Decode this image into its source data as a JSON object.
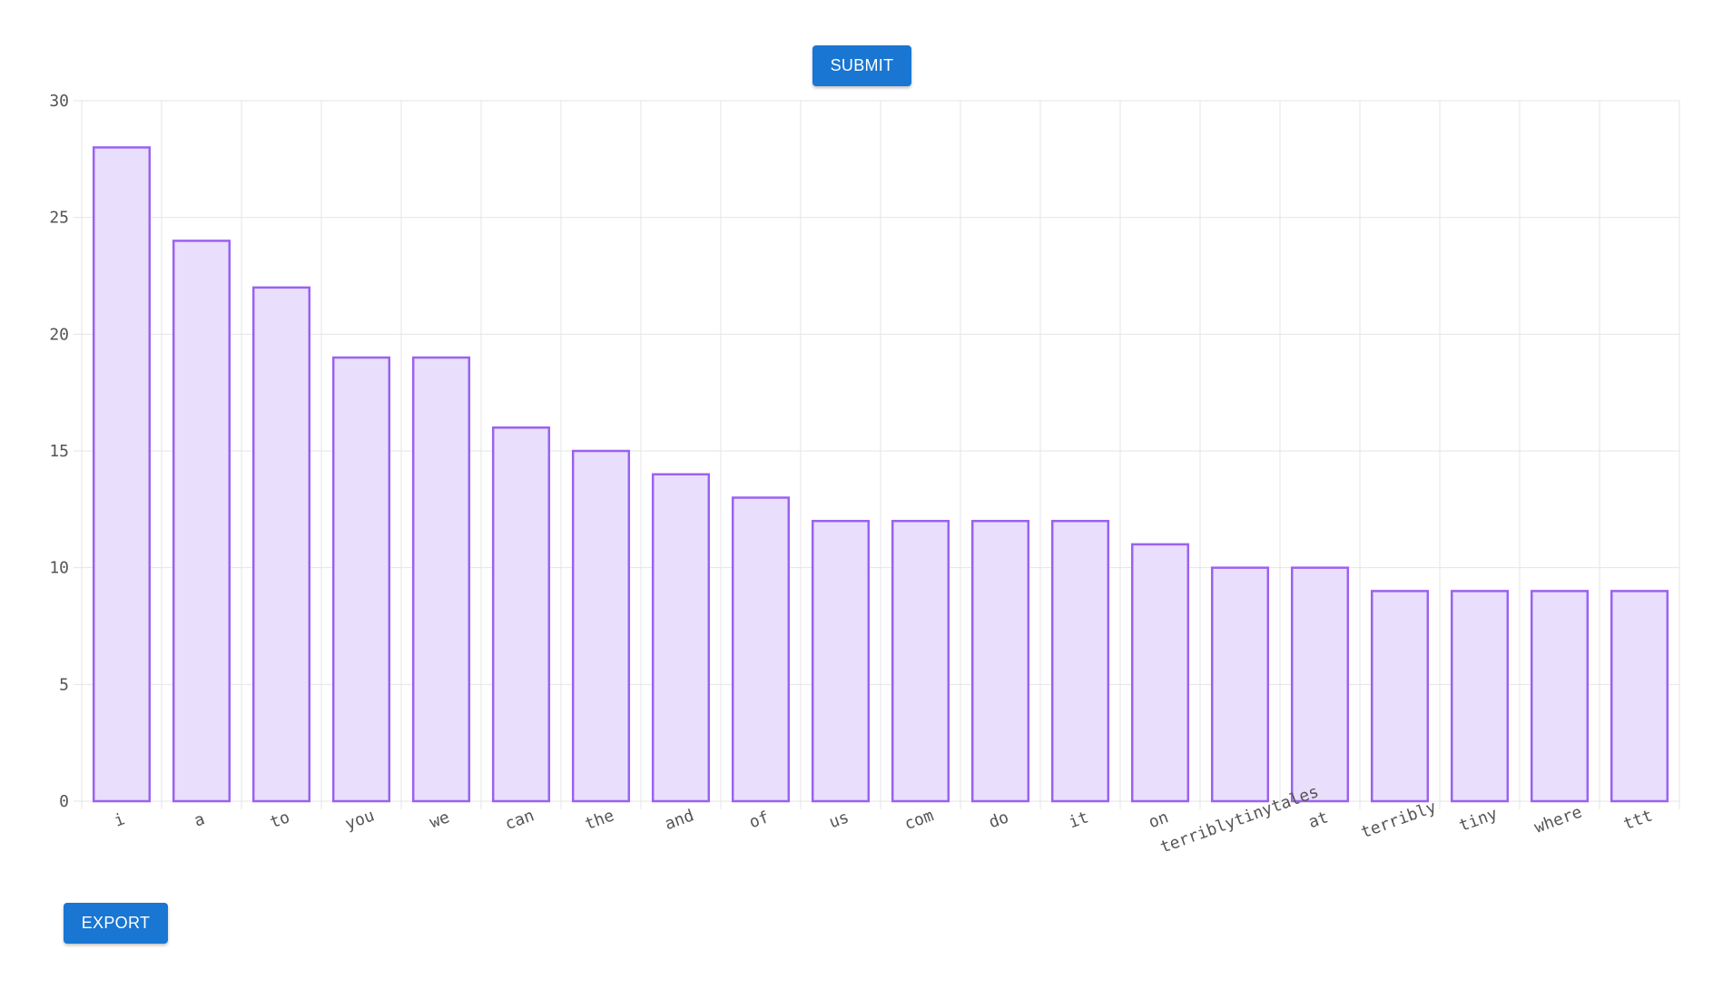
{
  "buttons": {
    "submit_label": "SUBMIT",
    "export_label": "EXPORT"
  },
  "colors": {
    "bar_fill": "#e9dffd",
    "bar_stroke": "#9b62f0",
    "grid": "#e4e4e4",
    "button_bg": "#1976d2"
  },
  "chart_data": {
    "type": "bar",
    "categories": [
      "i",
      "a",
      "to",
      "you",
      "we",
      "can",
      "the",
      "and",
      "of",
      "us",
      "com",
      "do",
      "it",
      "on",
      "terriblytinytales",
      "at",
      "terribly",
      "tiny",
      "where",
      "ttt"
    ],
    "values": [
      28,
      24,
      22,
      19,
      19,
      16,
      15,
      14,
      13,
      12,
      12,
      12,
      12,
      11,
      10,
      10,
      9,
      9,
      9,
      9
    ],
    "ylim": [
      0,
      30
    ],
    "yticks": [
      0,
      5,
      10,
      15,
      20,
      25,
      30
    ],
    "grid": true,
    "title": "",
    "xlabel": "",
    "ylabel": ""
  }
}
